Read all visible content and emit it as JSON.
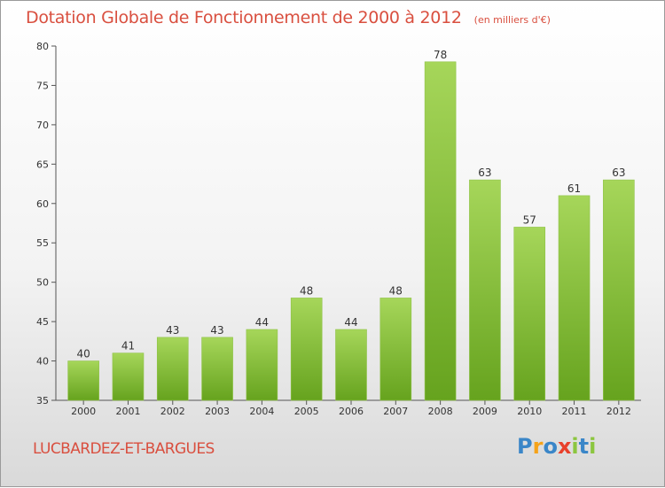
{
  "title": "Dotation Globale de Fonctionnement de 2000 à 2012",
  "unit": "(en milliers d'€)",
  "commune": "LUCBARDEZ-ET-BARGUES",
  "logo": {
    "text": "Proxiti",
    "letters": [
      {
        "ch": "P",
        "color": "#3a86c8"
      },
      {
        "ch": "r",
        "color": "#f5a31a"
      },
      {
        "ch": "o",
        "color": "#3a86c8"
      },
      {
        "ch": "x",
        "color": "#e8402b"
      },
      {
        "ch": "i",
        "color": "#8cc63f"
      },
      {
        "ch": "t",
        "color": "#3a86c8"
      },
      {
        "ch": "i",
        "color": "#8cc63f"
      }
    ]
  },
  "colors": {
    "bar_top": "#a6d65a",
    "bar_bottom": "#66a31e",
    "axis": "#555555",
    "grid": "#d0d0d0"
  },
  "chart_data": {
    "type": "bar",
    "categories": [
      "2000",
      "2001",
      "2002",
      "2003",
      "2004",
      "2005",
      "2006",
      "2007",
      "2008",
      "2009",
      "2010",
      "2011",
      "2012"
    ],
    "values": [
      40,
      41,
      43,
      43,
      44,
      48,
      44,
      48,
      78,
      63,
      57,
      61,
      63
    ],
    "ylim": [
      35,
      80
    ],
    "yticks": [
      35,
      40,
      45,
      50,
      55,
      60,
      65,
      70,
      75,
      80
    ],
    "grid": false
  }
}
